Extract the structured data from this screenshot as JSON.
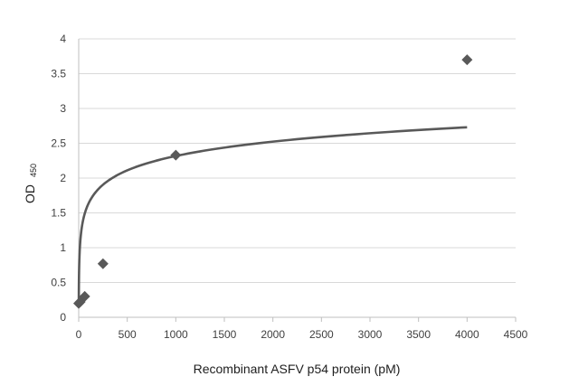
{
  "chart_data": {
    "type": "scatter",
    "xlabel": "Recombinant ASFV p54 protein (pM)",
    "ylabel": "OD",
    "ylabel_subscript": "450",
    "xlim": [
      0,
      4500
    ],
    "ylim": [
      0,
      4
    ],
    "x_ticks": [
      0,
      500,
      1000,
      1500,
      2000,
      2500,
      3000,
      3500,
      4000,
      4500
    ],
    "y_ticks": [
      0,
      0.5,
      1,
      1.5,
      2,
      2.5,
      3,
      3.5,
      4
    ],
    "y_tick_labels": [
      "0",
      "0.5",
      "1",
      "1.5",
      "2",
      "2.5",
      "3",
      "3.5",
      "4"
    ],
    "grid": "horizontal",
    "series": [
      {
        "points": [
          {
            "x": 0,
            "y": 0.2
          },
          {
            "x": 15,
            "y": 0.22
          },
          {
            "x": 62,
            "y": 0.3
          },
          {
            "x": 250,
            "y": 0.77
          },
          {
            "x": 1000,
            "y": 2.33
          },
          {
            "x": 4000,
            "y": 3.7
          }
        ],
        "marker": "diamond",
        "color": "#595959"
      }
    ],
    "trendline": {
      "type": "logarithmic",
      "color": "#595959",
      "x_range": [
        1,
        4000
      ],
      "y_at_x_range": [
        0.26,
        2.73
      ]
    }
  }
}
